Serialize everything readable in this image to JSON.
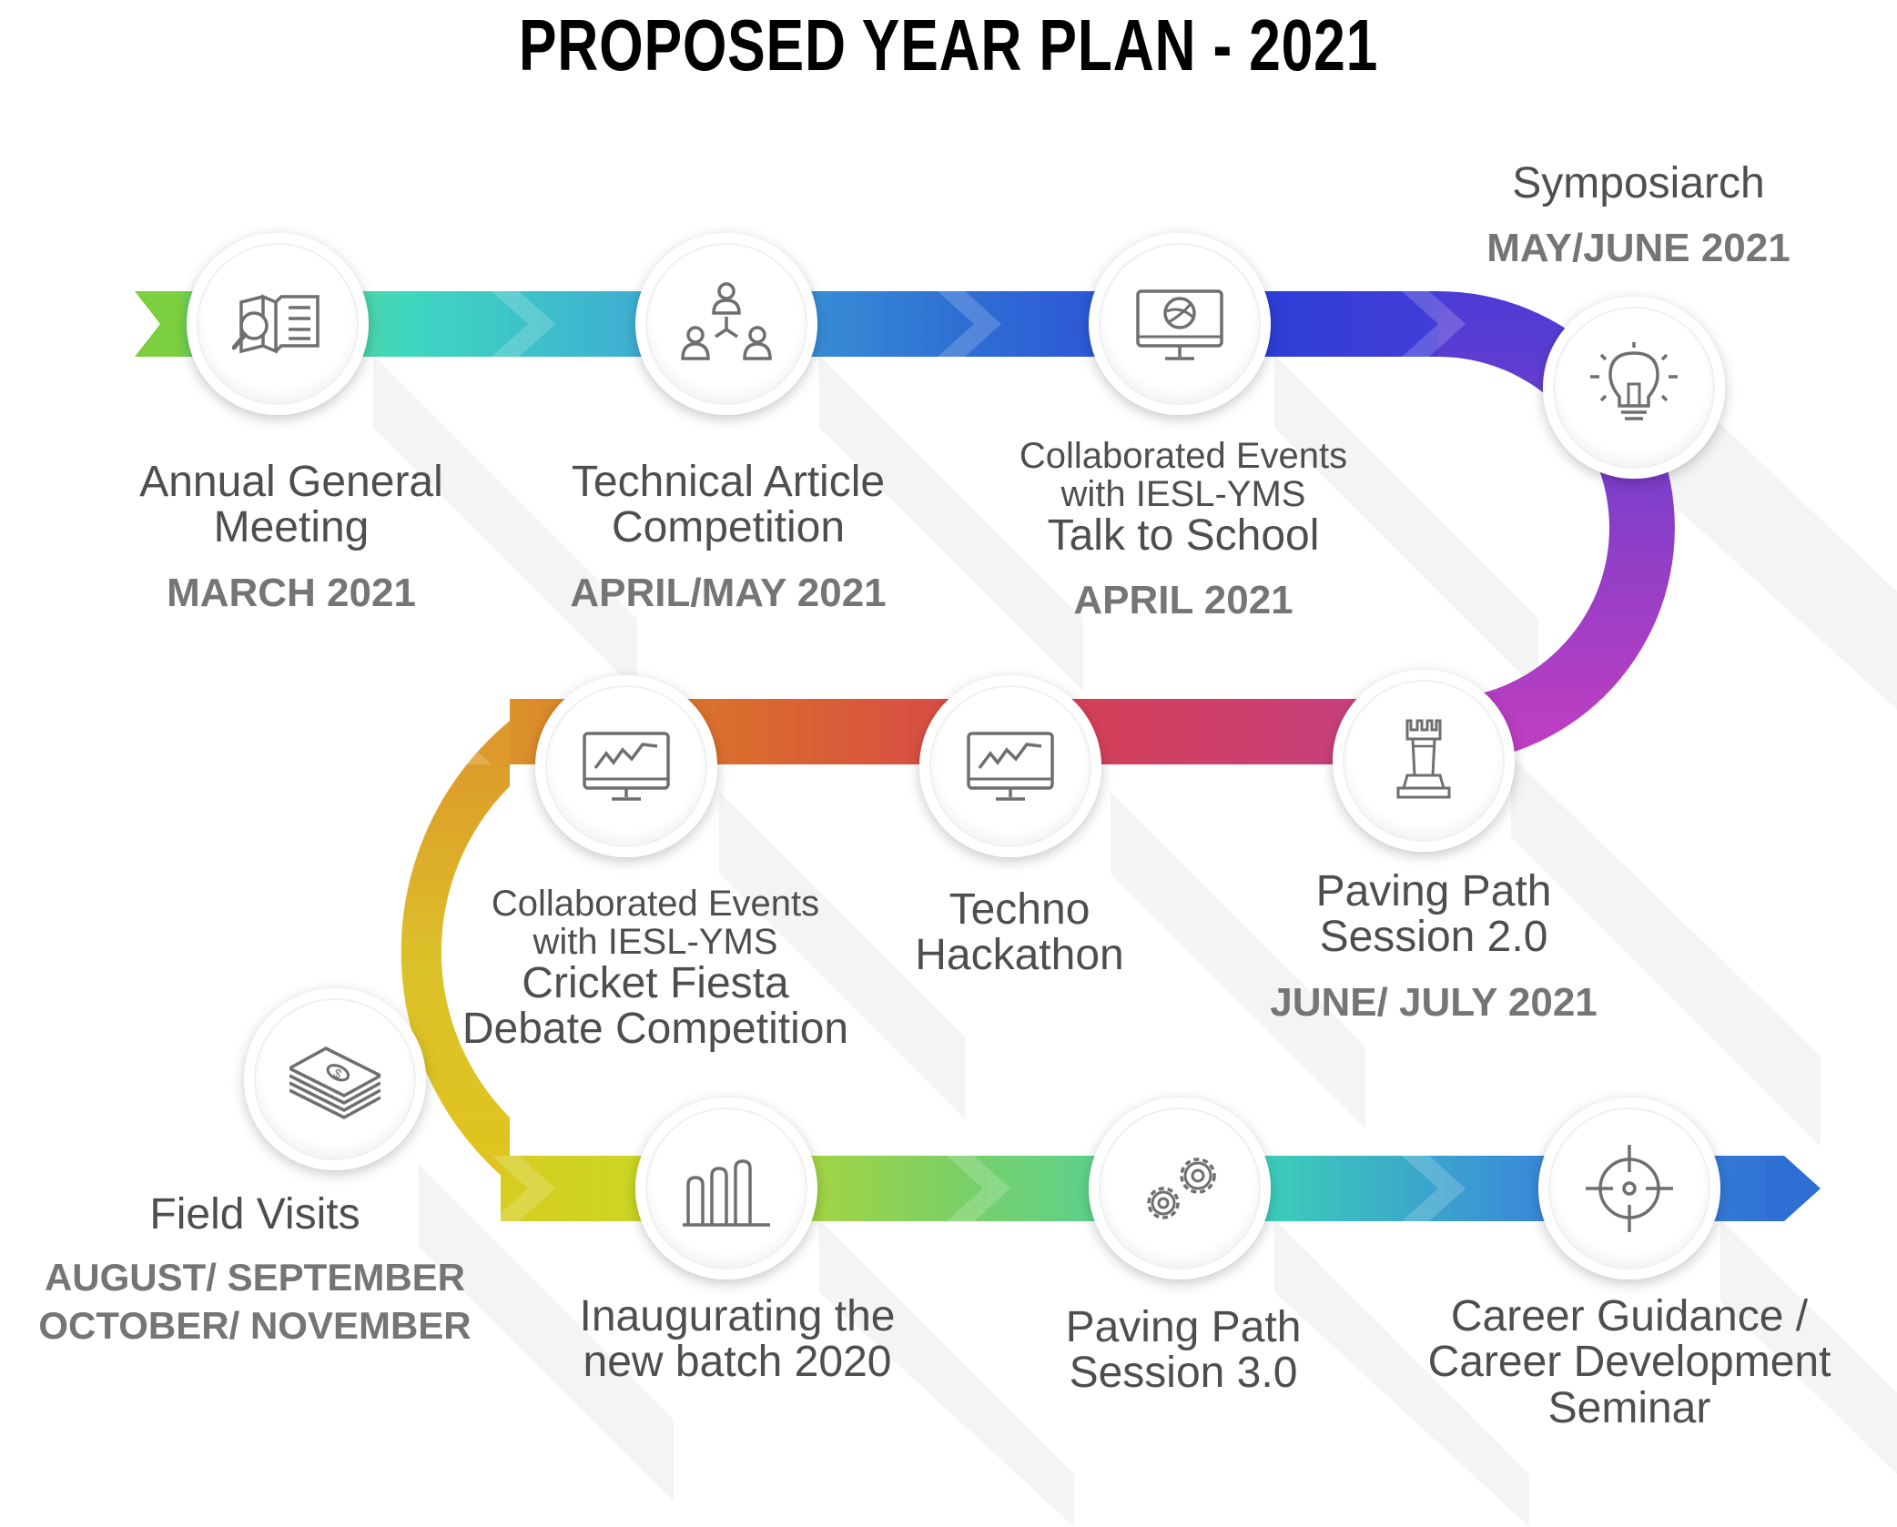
{
  "title": "PROPOSED YEAR PLAN - 2021",
  "colors": {
    "background": "#ffffff",
    "title": "#000000",
    "label_text": "#4e4e4e",
    "date_text": "#757575",
    "icon_stroke": "#6f6f6f",
    "path_gradient_row1": [
      "#7ccf3e",
      "#3fd6c0",
      "#3ea6d6",
      "#2f6fd4",
      "#2a3fd8",
      "#4b3cd6"
    ],
    "path_gradient_turn_right": [
      "#4b3cd6",
      "#8a3ec8",
      "#c43ec0"
    ],
    "path_gradient_row2": [
      "#c8407a",
      "#d64050",
      "#da6a2e",
      "#dd9a2a"
    ],
    "path_gradient_turn_left": [
      "#dd9a2a",
      "#dcc22a",
      "#e0c41e"
    ],
    "path_gradient_row3": [
      "#e0c41e",
      "#c9d824",
      "#7bd066",
      "#3dd3b8",
      "#3a8ad8",
      "#2f6fd4"
    ]
  },
  "milestones": [
    {
      "id": "agm",
      "icon": "magnifier-newspaper-icon",
      "lines": [
        "Annual General",
        "Meeting"
      ],
      "date": [
        "MARCH 2021"
      ]
    },
    {
      "id": "technical-article",
      "icon": "team-hierarchy-icon",
      "lines": [
        "Technical Article",
        "Competition"
      ],
      "date": [
        "APRIL/MAY 2021"
      ]
    },
    {
      "id": "talk-to-school",
      "icon": "monitor-graphic-icon",
      "pre": [
        "Collaborated Events",
        "with IESL-YMS"
      ],
      "lines": [
        "Talk to School"
      ],
      "date": [
        "APRIL 2021"
      ]
    },
    {
      "id": "symposiarch",
      "icon": "light-bulb-icon",
      "lines": [
        "Symposiarch"
      ],
      "date": [
        "MAY/JUNE 2021"
      ]
    },
    {
      "id": "paving-path-2",
      "icon": "chess-rook-icon",
      "lines": [
        "Paving Path",
        "Session 2.0"
      ],
      "date": [
        "JUNE/ JULY 2021"
      ]
    },
    {
      "id": "hackathon",
      "icon": "monitor-chart-icon",
      "lines": [
        "Techno",
        "Hackathon"
      ],
      "date": []
    },
    {
      "id": "cricket-debate",
      "icon": "monitor-chart-icon",
      "pre": [
        "Collaborated Events",
        "with IESL-YMS"
      ],
      "lines": [
        "Cricket Fiesta",
        "Debate Competition"
      ],
      "date": []
    },
    {
      "id": "field-visits",
      "icon": "money-stack-icon",
      "lines": [
        "Field Visits"
      ],
      "date": [
        "AUGUST/ SEPTEMBER",
        "OCTOBER/ NOVEMBER"
      ]
    },
    {
      "id": "new-batch",
      "icon": "bar-chart-icon",
      "lines": [
        "Inaugurating the",
        "new batch 2020"
      ],
      "date": []
    },
    {
      "id": "paving-path-3",
      "icon": "gears-icon",
      "lines": [
        "Paving Path",
        "Session 3.0"
      ],
      "date": []
    },
    {
      "id": "career",
      "icon": "target-crosshair-icon",
      "lines": [
        "Career Guidance /",
        "Career Development",
        "Seminar"
      ],
      "date": []
    }
  ]
}
